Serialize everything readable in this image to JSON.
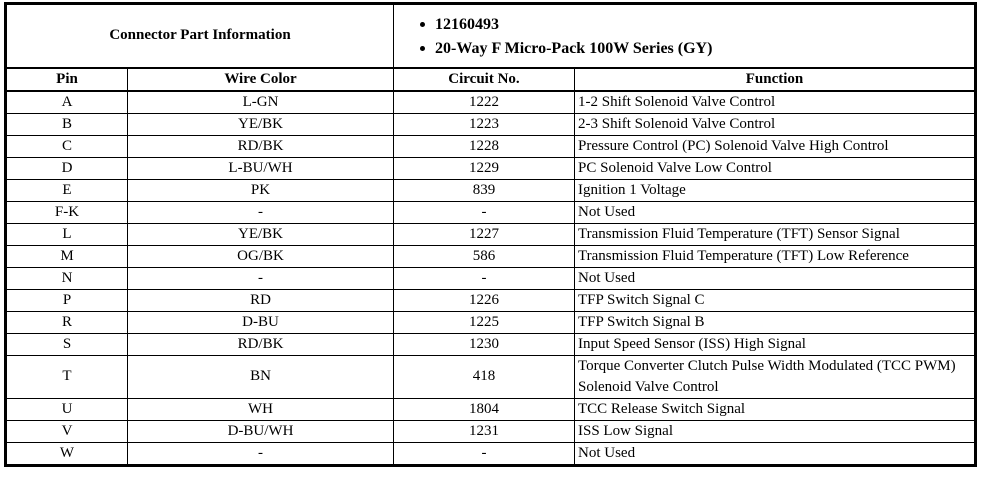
{
  "part_info": {
    "label": "Connector Part Information",
    "bullets": [
      "12160493",
      "20-Way F Micro-Pack 100W Series (GY)"
    ]
  },
  "table": {
    "columns": [
      "Pin",
      "Wire Color",
      "Circuit No.",
      "Function"
    ],
    "rows": [
      {
        "pin": "A",
        "wire_color": "L-GN",
        "circuit_no": "1222",
        "function": "1-2 Shift Solenoid Valve Control"
      },
      {
        "pin": "B",
        "wire_color": "YE/BK",
        "circuit_no": "1223",
        "function": "2-3 Shift Solenoid Valve Control"
      },
      {
        "pin": "C",
        "wire_color": "RD/BK",
        "circuit_no": "1228",
        "function": "Pressure Control (PC) Solenoid Valve High Control"
      },
      {
        "pin": "D",
        "wire_color": "L-BU/WH",
        "circuit_no": "1229",
        "function": "PC Solenoid Valve Low Control"
      },
      {
        "pin": "E",
        "wire_color": "PK",
        "circuit_no": "839",
        "function": "Ignition 1 Voltage"
      },
      {
        "pin": "F-K",
        "wire_color": "-",
        "circuit_no": "-",
        "function": "Not Used"
      },
      {
        "pin": "L",
        "wire_color": "YE/BK",
        "circuit_no": "1227",
        "function": "Transmission Fluid Temperature (TFT) Sensor Signal"
      },
      {
        "pin": "M",
        "wire_color": "OG/BK",
        "circuit_no": "586",
        "function": "Transmission Fluid Temperature (TFT) Low Reference"
      },
      {
        "pin": "N",
        "wire_color": "-",
        "circuit_no": "-",
        "function": "Not Used"
      },
      {
        "pin": "P",
        "wire_color": "RD",
        "circuit_no": "1226",
        "function": "TFP Switch Signal C"
      },
      {
        "pin": "R",
        "wire_color": "D-BU",
        "circuit_no": "1225",
        "function": "TFP Switch Signal B"
      },
      {
        "pin": "S",
        "wire_color": "RD/BK",
        "circuit_no": "1230",
        "function": "Input Speed Sensor (ISS) High Signal"
      },
      {
        "pin": "T",
        "wire_color": "BN",
        "circuit_no": "418",
        "function": "Torque Converter Clutch Pulse Width Modulated (TCC PWM) Solenoid Valve Control"
      },
      {
        "pin": "U",
        "wire_color": "WH",
        "circuit_no": "1804",
        "function": "TCC Release Switch Signal"
      },
      {
        "pin": "V",
        "wire_color": "D-BU/WH",
        "circuit_no": "1231",
        "function": "ISS Low Signal"
      },
      {
        "pin": "W",
        "wire_color": "-",
        "circuit_no": "-",
        "function": "Not Used"
      }
    ]
  },
  "colors": {
    "border": "#000000",
    "text": "#000000",
    "background": "#ffffff"
  }
}
